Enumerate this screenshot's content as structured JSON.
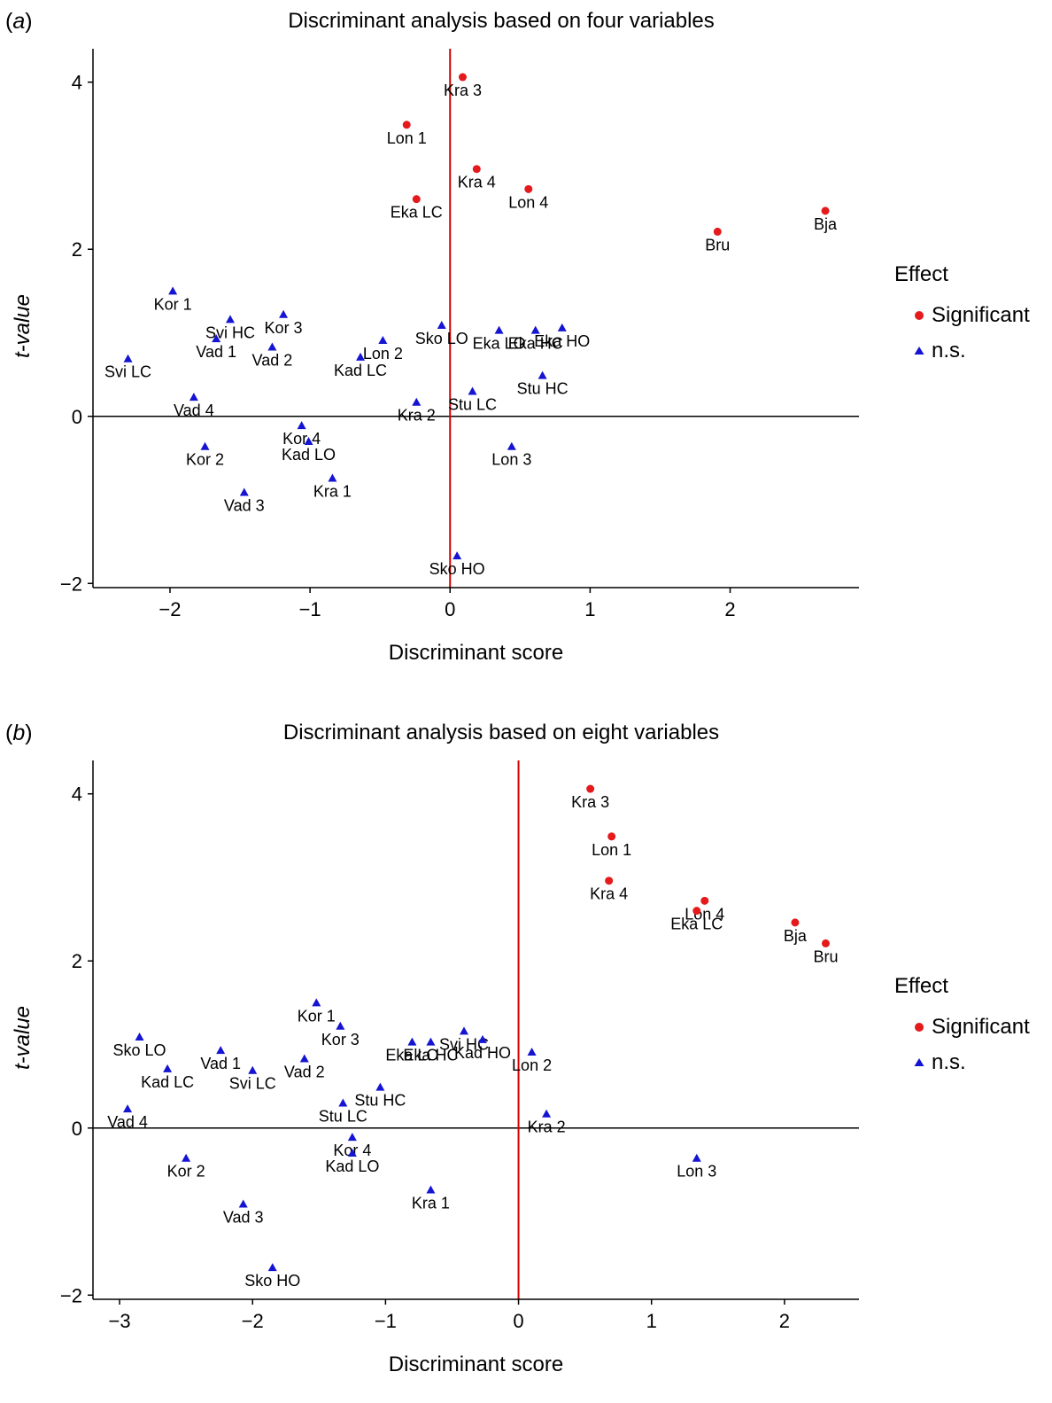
{
  "colors": {
    "significant": "#e41a1c",
    "ns": "#1414d2",
    "vline": "#d40000",
    "axis": "#000000"
  },
  "chart_data": [
    {
      "panel_label": "a",
      "type": "scatter",
      "title": "Discriminant analysis based on four variables",
      "xlabel": "Discriminant score",
      "ylabel": "t-value",
      "xlim": [
        -2.55,
        2.92
      ],
      "ylim": [
        -2.05,
        4.4
      ],
      "xticks": [
        -2,
        -1,
        0,
        1,
        2
      ],
      "xtick_labels": [
        "−2",
        "−1",
        "0",
        "1",
        "2"
      ],
      "yticks": [
        -2,
        0,
        2,
        4
      ],
      "ytick_labels": [
        "−2",
        "0",
        "2",
        "4"
      ],
      "reference_lines": {
        "x": 0,
        "y": 0
      },
      "legend": {
        "title": "Effect",
        "position": "right",
        "entries": [
          "Significant",
          "n.s."
        ]
      },
      "series": [
        {
          "name": "Significant",
          "marker": "circle",
          "points": [
            {
              "label": "Kra 3",
              "x": 0.09,
              "y": 4.06
            },
            {
              "label": "Lon 1",
              "x": -0.31,
              "y": 3.49
            },
            {
              "label": "Kra 4",
              "x": 0.19,
              "y": 2.96
            },
            {
              "label": "Lon 4",
              "x": 0.56,
              "y": 2.72
            },
            {
              "label": "Eka LC",
              "x": -0.24,
              "y": 2.6
            },
            {
              "label": "Bja",
              "x": 2.68,
              "y": 2.46
            },
            {
              "label": "Bru",
              "x": 1.91,
              "y": 2.21
            }
          ]
        },
        {
          "name": "n.s.",
          "marker": "triangle",
          "points": [
            {
              "label": "Kor 1",
              "x": -1.98,
              "y": 1.5
            },
            {
              "label": "Kor 3",
              "x": -1.19,
              "y": 1.22
            },
            {
              "label": "Svi HC",
              "x": -1.57,
              "y": 1.16
            },
            {
              "label": "Sko LO",
              "x": -0.06,
              "y": 1.09
            },
            {
              "label": "Eka HO",
              "x": 0.8,
              "y": 1.06
            },
            {
              "label": "Eka HC",
              "x": 0.61,
              "y": 1.03
            },
            {
              "label": "Eka LO",
              "x": 0.35,
              "y": 1.03
            },
            {
              "label": "Vad 1",
              "x": -1.67,
              "y": 0.93
            },
            {
              "label": "Lon 2",
              "x": -0.48,
              "y": 0.91
            },
            {
              "label": "Vad 2",
              "x": -1.27,
              "y": 0.83
            },
            {
              "label": "Kad LC",
              "x": -0.64,
              "y": 0.71
            },
            {
              "label": "Svi LC",
              "x": -2.3,
              "y": 0.69
            },
            {
              "label": "Stu HC",
              "x": 0.66,
              "y": 0.49
            },
            {
              "label": "Stu LC",
              "x": 0.16,
              "y": 0.3
            },
            {
              "label": "Vad 4",
              "x": -1.83,
              "y": 0.23
            },
            {
              "label": "Kra 2",
              "x": -0.24,
              "y": 0.17
            },
            {
              "label": "Kor 4",
              "x": -1.06,
              "y": -0.11
            },
            {
              "label": "Kad LO",
              "x": -1.01,
              "y": -0.3
            },
            {
              "label": "Kor 2",
              "x": -1.75,
              "y": -0.36
            },
            {
              "label": "Lon 3",
              "x": 0.44,
              "y": -0.36
            },
            {
              "label": "Kra 1",
              "x": -0.84,
              "y": -0.74
            },
            {
              "label": "Vad 3",
              "x": -1.47,
              "y": -0.91
            },
            {
              "label": "Sko HO",
              "x": 0.05,
              "y": -1.67
            }
          ]
        }
      ]
    },
    {
      "panel_label": "b",
      "type": "scatter",
      "title": "Discriminant analysis based on eight variables",
      "xlabel": "Discriminant score",
      "ylabel": "t-value",
      "xlim": [
        -3.2,
        2.56
      ],
      "ylim": [
        -2.05,
        4.4
      ],
      "xticks": [
        -3,
        -2,
        -1,
        0,
        1,
        2
      ],
      "xtick_labels": [
        "−3",
        "−2",
        "−1",
        "0",
        "1",
        "2"
      ],
      "yticks": [
        -2,
        0,
        2,
        4
      ],
      "ytick_labels": [
        "−2",
        "0",
        "2",
        "4"
      ],
      "reference_lines": {
        "x": 0,
        "y": 0
      },
      "legend": {
        "title": "Effect",
        "position": "right",
        "entries": [
          "Significant",
          "n.s."
        ]
      },
      "series": [
        {
          "name": "Significant",
          "marker": "circle",
          "points": [
            {
              "label": "Kra 3",
              "x": 0.54,
              "y": 4.06
            },
            {
              "label": "Lon 1",
              "x": 0.7,
              "y": 3.49
            },
            {
              "label": "Kra 4",
              "x": 0.68,
              "y": 2.96
            },
            {
              "label": "Lon 4",
              "x": 1.4,
              "y": 2.72
            },
            {
              "label": "Eka LC",
              "x": 1.34,
              "y": 2.6
            },
            {
              "label": "Bja",
              "x": 2.08,
              "y": 2.46
            },
            {
              "label": "Bru",
              "x": 2.31,
              "y": 2.21
            }
          ]
        },
        {
          "name": "n.s.",
          "marker": "triangle",
          "points": [
            {
              "label": "Kor 1",
              "x": -1.52,
              "y": 1.5
            },
            {
              "label": "Kor 3",
              "x": -1.34,
              "y": 1.22
            },
            {
              "label": "Svi HC",
              "x": -0.41,
              "y": 1.16
            },
            {
              "label": "Sko LO",
              "x": -2.85,
              "y": 1.09
            },
            {
              "label": "Kad HO",
              "x": -0.27,
              "y": 1.06
            },
            {
              "label": "Eka HC",
              "x": -0.66,
              "y": 1.03
            },
            {
              "label": "Eka LO",
              "x": -0.8,
              "y": 1.03
            },
            {
              "label": "Vad 1",
              "x": -2.24,
              "y": 0.93
            },
            {
              "label": "Lon 2",
              "x": 0.1,
              "y": 0.91
            },
            {
              "label": "Vad 2",
              "x": -1.61,
              "y": 0.83
            },
            {
              "label": "Kad LC",
              "x": -2.64,
              "y": 0.71
            },
            {
              "label": "Svi LC",
              "x": -2.0,
              "y": 0.69
            },
            {
              "label": "Stu HC",
              "x": -1.04,
              "y": 0.49
            },
            {
              "label": "Stu LC",
              "x": -1.32,
              "y": 0.3
            },
            {
              "label": "Vad 4",
              "x": -2.94,
              "y": 0.23
            },
            {
              "label": "Kra 2",
              "x": 0.21,
              "y": 0.17
            },
            {
              "label": "Kor 4",
              "x": -1.25,
              "y": -0.11
            },
            {
              "label": "Kad LO",
              "x": -1.25,
              "y": -0.3
            },
            {
              "label": "Kor 2",
              "x": -2.5,
              "y": -0.36
            },
            {
              "label": "Lon 3",
              "x": 1.34,
              "y": -0.36
            },
            {
              "label": "Kra 1",
              "x": -0.66,
              "y": -0.74
            },
            {
              "label": "Vad 3",
              "x": -2.07,
              "y": -0.91
            },
            {
              "label": "Sko HO",
              "x": -1.85,
              "y": -1.67
            }
          ]
        }
      ]
    }
  ]
}
